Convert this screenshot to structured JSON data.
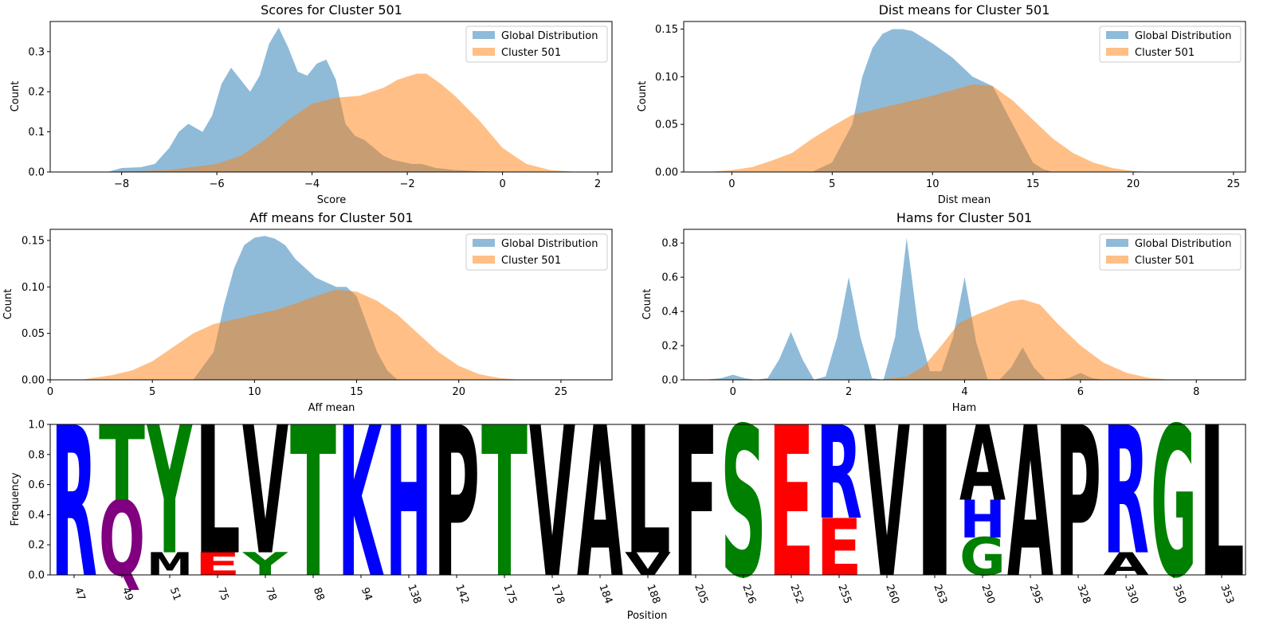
{
  "colors": {
    "global": "#1f77b4",
    "cluster": "#ff7f0e",
    "residue_blue": "#0000ff",
    "residue_green": "#008000",
    "residue_red": "#ff0000",
    "residue_purple": "#800080",
    "residue_black": "#000000"
  },
  "chart_data": [
    {
      "type": "area",
      "title": "Scores for Cluster 501",
      "xlabel": "Score",
      "ylabel": "Count",
      "xlim": [
        -9.5,
        2.3
      ],
      "ylim": [
        0,
        0.375
      ],
      "xticks": [
        -8,
        -6,
        -4,
        -2,
        0,
        2
      ],
      "xtick_labels": [
        "−8",
        "−6",
        "−4",
        "−2",
        "0",
        "2"
      ],
      "yticks": [
        0.0,
        0.1,
        0.2,
        0.3
      ],
      "ytick_labels": [
        "0.0",
        "0.1",
        "0.2",
        "0.3"
      ],
      "legend_position": "top-right",
      "series": [
        {
          "name": "Global Distribution",
          "color": "#1f77b4",
          "x": [
            -8.3,
            -8.0,
            -7.6,
            -7.3,
            -7.0,
            -6.8,
            -6.6,
            -6.3,
            -6.1,
            -5.9,
            -5.7,
            -5.5,
            -5.3,
            -5.1,
            -4.9,
            -4.7,
            -4.5,
            -4.3,
            -4.1,
            -3.9,
            -3.7,
            -3.5,
            -3.3,
            -3.1,
            -2.9,
            -2.7,
            -2.5,
            -2.3,
            -2.1,
            -1.9,
            -1.7,
            -1.4,
            -1.0,
            -0.5,
            0.0
          ],
          "y": [
            0.0,
            0.01,
            0.012,
            0.02,
            0.06,
            0.1,
            0.12,
            0.1,
            0.14,
            0.22,
            0.26,
            0.23,
            0.2,
            0.24,
            0.32,
            0.36,
            0.31,
            0.25,
            0.24,
            0.27,
            0.28,
            0.23,
            0.12,
            0.09,
            0.08,
            0.06,
            0.04,
            0.03,
            0.025,
            0.02,
            0.02,
            0.01,
            0.005,
            0.002,
            0.0
          ]
        },
        {
          "name": "Cluster 501",
          "color": "#ff7f0e",
          "x": [
            -8.3,
            -7.0,
            -6.0,
            -5.5,
            -5.0,
            -4.5,
            -4.0,
            -3.5,
            -3.0,
            -2.5,
            -2.2,
            -1.8,
            -1.6,
            -1.3,
            -1.0,
            -0.5,
            0.0,
            0.5,
            1.0,
            1.6
          ],
          "y": [
            0.0,
            0.005,
            0.02,
            0.04,
            0.08,
            0.13,
            0.17,
            0.185,
            0.19,
            0.21,
            0.23,
            0.245,
            0.245,
            0.22,
            0.19,
            0.13,
            0.06,
            0.02,
            0.005,
            0.0
          ]
        }
      ]
    },
    {
      "type": "area",
      "title": "Dist means for Cluster 501",
      "xlabel": "Dist mean",
      "ylabel": "Count",
      "xlim": [
        -2.4,
        25.6
      ],
      "ylim": [
        0,
        0.158
      ],
      "xticks": [
        0,
        5,
        10,
        15,
        20,
        25
      ],
      "xtick_labels": [
        "0",
        "5",
        "10",
        "15",
        "20",
        "25"
      ],
      "yticks": [
        0.0,
        0.05,
        0.1,
        0.15
      ],
      "ytick_labels": [
        "0.00",
        "0.05",
        "0.10",
        "0.15"
      ],
      "legend_position": "top-right",
      "series": [
        {
          "name": "Global Distribution",
          "color": "#1f77b4",
          "x": [
            4.0,
            5.0,
            6.0,
            6.5,
            7.0,
            7.5,
            8.0,
            8.5,
            9.0,
            10.0,
            11.0,
            12.0,
            12.5,
            13.0,
            14.0,
            15.0,
            15.5,
            16.0
          ],
          "y": [
            0.0,
            0.01,
            0.05,
            0.1,
            0.13,
            0.145,
            0.15,
            0.15,
            0.148,
            0.135,
            0.12,
            0.1,
            0.095,
            0.09,
            0.05,
            0.01,
            0.003,
            0.0
          ]
        },
        {
          "name": "Cluster 501",
          "color": "#ff7f0e",
          "x": [
            -1.2,
            0.0,
            1.0,
            2.0,
            3.0,
            4.0,
            5.0,
            6.0,
            8.0,
            10.0,
            12.0,
            13.0,
            14.0,
            15.0,
            16.0,
            17.0,
            18.0,
            19.0,
            20.0,
            21.0
          ],
          "y": [
            0.0,
            0.002,
            0.005,
            0.012,
            0.02,
            0.035,
            0.048,
            0.06,
            0.07,
            0.08,
            0.092,
            0.09,
            0.075,
            0.055,
            0.035,
            0.02,
            0.01,
            0.004,
            0.001,
            0.0
          ]
        }
      ]
    },
    {
      "type": "area",
      "title": "Aff means for Cluster 501",
      "xlabel": "Aff mean",
      "ylabel": "Count",
      "xlim": [
        0,
        27.5
      ],
      "ylim": [
        0,
        0.162
      ],
      "xticks": [
        0,
        5,
        10,
        15,
        20,
        25
      ],
      "xtick_labels": [
        "0",
        "5",
        "10",
        "15",
        "20",
        "25"
      ],
      "yticks": [
        0.0,
        0.05,
        0.1,
        0.15
      ],
      "ytick_labels": [
        "0.00",
        "0.05",
        "0.10",
        "0.15"
      ],
      "legend_position": "top-right",
      "series": [
        {
          "name": "Global Distribution",
          "color": "#1f77b4",
          "x": [
            7.0,
            8.0,
            8.5,
            9.0,
            9.5,
            10.0,
            10.5,
            11.0,
            11.5,
            12.0,
            13.0,
            14.0,
            14.5,
            15.0,
            15.5,
            16.0,
            16.5,
            17.0
          ],
          "y": [
            0.0,
            0.03,
            0.08,
            0.12,
            0.145,
            0.153,
            0.155,
            0.152,
            0.145,
            0.13,
            0.11,
            0.1,
            0.1,
            0.09,
            0.06,
            0.03,
            0.01,
            0.0
          ]
        },
        {
          "name": "Cluster 501",
          "color": "#ff7f0e",
          "x": [
            1.5,
            3.0,
            4.0,
            5.0,
            6.0,
            7.0,
            8.0,
            9.0,
            10.0,
            11.0,
            12.0,
            13.0,
            14.0,
            15.0,
            16.0,
            17.0,
            18.0,
            19.0,
            20.0,
            21.0,
            22.0,
            23.0
          ],
          "y": [
            0.0,
            0.005,
            0.01,
            0.02,
            0.035,
            0.05,
            0.06,
            0.065,
            0.07,
            0.075,
            0.082,
            0.09,
            0.097,
            0.095,
            0.085,
            0.07,
            0.05,
            0.03,
            0.015,
            0.006,
            0.002,
            0.0
          ]
        }
      ]
    },
    {
      "type": "area",
      "title": "Hams for Cluster 501",
      "xlabel": "Ham",
      "ylabel": "Count",
      "xlim": [
        -0.85,
        8.85
      ],
      "ylim": [
        0,
        0.88
      ],
      "xticks": [
        0,
        2,
        4,
        6,
        8
      ],
      "xtick_labels": [
        "0",
        "2",
        "4",
        "6",
        "8"
      ],
      "yticks": [
        0.0,
        0.2,
        0.4,
        0.6,
        0.8
      ],
      "ytick_labels": [
        "0.0",
        "0.2",
        "0.4",
        "0.6",
        "0.8"
      ],
      "legend_position": "top-right",
      "series": [
        {
          "name": "Global Distribution",
          "color": "#1f77b4",
          "x": [
            -0.5,
            -0.2,
            0.0,
            0.2,
            0.4,
            0.6,
            0.8,
            1.0,
            1.2,
            1.4,
            1.6,
            1.8,
            2.0,
            2.2,
            2.4,
            2.6,
            2.8,
            3.0,
            3.2,
            3.4,
            3.6,
            3.8,
            4.0,
            4.2,
            4.4,
            4.6,
            4.8,
            5.0,
            5.2,
            5.4,
            5.6,
            5.8,
            6.0,
            6.2,
            6.4,
            6.6,
            6.8
          ],
          "y": [
            0.0,
            0.01,
            0.03,
            0.01,
            0.0,
            0.01,
            0.12,
            0.28,
            0.12,
            0.0,
            0.02,
            0.25,
            0.6,
            0.25,
            0.01,
            0.0,
            0.25,
            0.83,
            0.3,
            0.05,
            0.05,
            0.25,
            0.6,
            0.22,
            0.0,
            0.0,
            0.07,
            0.19,
            0.07,
            0.0,
            0.0,
            0.01,
            0.04,
            0.01,
            0.0,
            0.0,
            0.0
          ]
        },
        {
          "name": "Cluster 501",
          "color": "#ff7f0e",
          "x": [
            2.5,
            3.0,
            3.3,
            3.6,
            3.9,
            4.2,
            4.5,
            4.8,
            5.0,
            5.3,
            5.6,
            6.0,
            6.4,
            6.8,
            7.2,
            7.6
          ],
          "y": [
            0.0,
            0.02,
            0.08,
            0.2,
            0.33,
            0.38,
            0.42,
            0.46,
            0.47,
            0.44,
            0.33,
            0.2,
            0.1,
            0.04,
            0.01,
            0.0
          ]
        }
      ]
    },
    {
      "type": "bar",
      "subtype": "sequence-logo",
      "xlabel": "Position",
      "ylabel": "Frequency",
      "ylim": [
        0,
        1.0
      ],
      "yticks": [
        0.0,
        0.2,
        0.4,
        0.6,
        0.8,
        1.0
      ],
      "ytick_labels": [
        "0.0",
        "0.2",
        "0.4",
        "0.6",
        "0.8",
        "1.0"
      ],
      "positions": [
        "47",
        "49",
        "51",
        "75",
        "78",
        "88",
        "94",
        "138",
        "142",
        "175",
        "178",
        "184",
        "188",
        "205",
        "226",
        "252",
        "255",
        "260",
        "263",
        "290",
        "295",
        "328",
        "330",
        "350",
        "353"
      ],
      "columns": [
        [
          {
            "letter": "R",
            "freq": 1.0,
            "color": "#0000ff"
          }
        ],
        [
          {
            "letter": "Q",
            "freq": 0.5,
            "color": "#800080"
          },
          {
            "letter": "T",
            "freq": 0.5,
            "color": "#008000"
          }
        ],
        [
          {
            "letter": "M",
            "freq": 0.15,
            "color": "#000000"
          },
          {
            "letter": "Y",
            "freq": 0.85,
            "color": "#008000"
          }
        ],
        [
          {
            "letter": "E",
            "freq": 0.15,
            "color": "#ff0000"
          },
          {
            "letter": "L",
            "freq": 0.85,
            "color": "#000000"
          }
        ],
        [
          {
            "letter": "Y",
            "freq": 0.15,
            "color": "#008000"
          },
          {
            "letter": "V",
            "freq": 0.85,
            "color": "#000000"
          }
        ],
        [
          {
            "letter": "T",
            "freq": 1.0,
            "color": "#008000"
          }
        ],
        [
          {
            "letter": "K",
            "freq": 1.0,
            "color": "#0000ff"
          }
        ],
        [
          {
            "letter": "H",
            "freq": 1.0,
            "color": "#0000ff"
          }
        ],
        [
          {
            "letter": "P",
            "freq": 1.0,
            "color": "#000000"
          }
        ],
        [
          {
            "letter": "T",
            "freq": 1.0,
            "color": "#008000"
          }
        ],
        [
          {
            "letter": "V",
            "freq": 1.0,
            "color": "#000000"
          }
        ],
        [
          {
            "letter": "A",
            "freq": 1.0,
            "color": "#000000"
          }
        ],
        [
          {
            "letter": "V",
            "freq": 0.15,
            "color": "#000000"
          },
          {
            "letter": "L",
            "freq": 0.85,
            "color": "#000000"
          }
        ],
        [
          {
            "letter": "F",
            "freq": 1.0,
            "color": "#000000"
          }
        ],
        [
          {
            "letter": "S",
            "freq": 1.0,
            "color": "#008000"
          }
        ],
        [
          {
            "letter": "E",
            "freq": 1.0,
            "color": "#ff0000"
          }
        ],
        [
          {
            "letter": "E",
            "freq": 0.38,
            "color": "#ff0000"
          },
          {
            "letter": "R",
            "freq": 0.62,
            "color": "#0000ff"
          }
        ],
        [
          {
            "letter": "V",
            "freq": 1.0,
            "color": "#000000"
          }
        ],
        [
          {
            "letter": "I",
            "freq": 1.0,
            "color": "#000000"
          }
        ],
        [
          {
            "letter": "G",
            "freq": 0.25,
            "color": "#008000"
          },
          {
            "letter": "H",
            "freq": 0.25,
            "color": "#0000ff"
          },
          {
            "letter": "A",
            "freq": 0.5,
            "color": "#000000"
          }
        ],
        [
          {
            "letter": "A",
            "freq": 1.0,
            "color": "#000000"
          }
        ],
        [
          {
            "letter": "P",
            "freq": 1.0,
            "color": "#000000"
          }
        ],
        [
          {
            "letter": "A",
            "freq": 0.15,
            "color": "#000000"
          },
          {
            "letter": "R",
            "freq": 0.85,
            "color": "#0000ff"
          }
        ],
        [
          {
            "letter": "G",
            "freq": 1.0,
            "color": "#008000"
          }
        ],
        [
          {
            "letter": "L",
            "freq": 1.0,
            "color": "#000000"
          }
        ]
      ]
    }
  ]
}
